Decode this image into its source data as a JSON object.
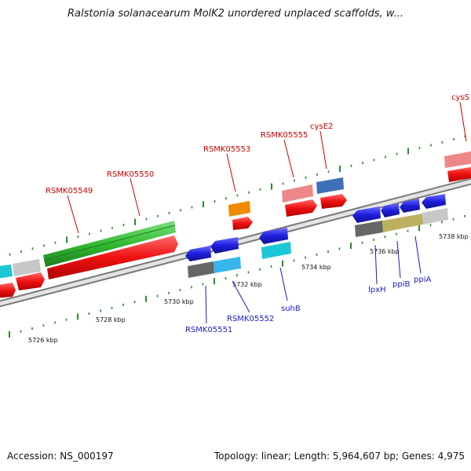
{
  "title": "Ralstonia solanacearum MolK2 unordered unplaced scaffolds, w...",
  "footer": {
    "accession": "Accession: NS_000197",
    "topology": "Topology: linear; Length: 5,964,607 bp; Genes: 4,975"
  },
  "colors": {
    "red": "#ee1111",
    "pink": "#ee8888",
    "green": "#33bb33",
    "orange": "#f08a00",
    "steelblue": "#3f6fb8",
    "blue": "#1f1fdd",
    "cyan": "#1cc7d6",
    "skyblue": "#35b6ee",
    "darkgray": "#666666",
    "lightgray": "#c7c7c7",
    "olive": "#bdb060",
    "axis": "#9a9a9a",
    "tick": "#2d8a2d",
    "forward_label": "#cc0000",
    "reverse_label": "#1a1acc"
  },
  "scale_ticks": [
    {
      "label": "5726 kbp"
    },
    {
      "label": "5728 kbp"
    },
    {
      "label": "5730 kbp"
    },
    {
      "label": "5732 kbp"
    },
    {
      "label": "5734 kbp"
    },
    {
      "label": "5736 kbp"
    },
    {
      "label": "5738 kbp"
    }
  ],
  "gene_labels": {
    "forward": [
      "RSMK05549",
      "RSMK05550",
      "RSMK05553",
      "RSMK05555",
      "cysE2",
      "cysS"
    ],
    "reverse": [
      "RSMK05551",
      "RSMK05552",
      "suhB",
      "lpxH",
      "ppiB",
      "ppiA"
    ]
  }
}
